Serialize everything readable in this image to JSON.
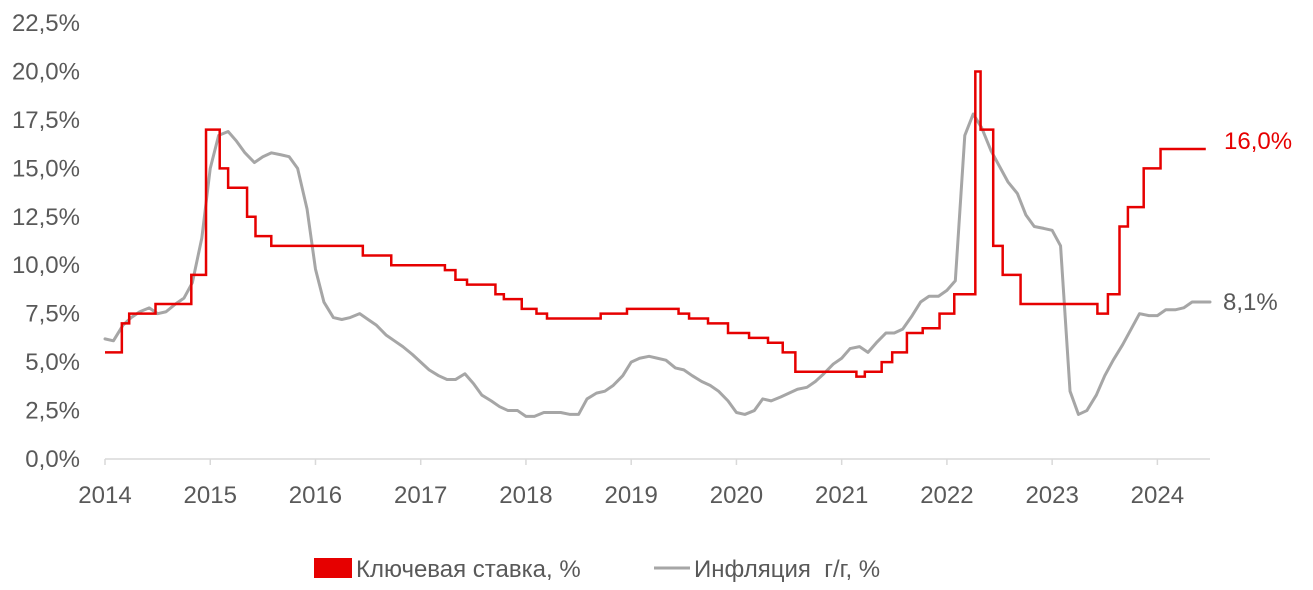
{
  "chart_data": {
    "type": "line",
    "title": "",
    "xlabel": "",
    "ylabel": "",
    "xlim": [
      2014.0,
      2024.5
    ],
    "ylim": [
      0,
      22.5
    ],
    "x_ticks": [
      "2014",
      "2015",
      "2016",
      "2017",
      "2018",
      "2019",
      "2020",
      "2021",
      "2022",
      "2023",
      "2024"
    ],
    "y_ticks": [
      0,
      2.5,
      5,
      7.5,
      10,
      12.5,
      15,
      17.5,
      20,
      22.5
    ],
    "y_tick_labels": [
      "0,0%",
      "2,5%",
      "5,0%",
      "7,5%",
      "10,0%",
      "12,5%",
      "15,0%",
      "17,5%",
      "20,0%",
      "22,5%"
    ],
    "grid": false,
    "legend_position": "bottom",
    "legend": [
      "Ключевая ставка, %",
      "Инфляция  г/г, %"
    ],
    "end_labels": [
      "16,0%",
      "8,1%"
    ],
    "colors": {
      "key_rate": "#e60000",
      "inflation": "#a6a6a6",
      "axis": "#d9d9d9",
      "text": "#595959"
    },
    "series": [
      {
        "name": "Ключевая ставка, %",
        "kind": "step",
        "x": [
          2014.0,
          2014.16,
          2014.23,
          2014.48,
          2014.82,
          2014.96,
          2015.09,
          2015.17,
          2015.35,
          2015.43,
          2015.58,
          2016.45,
          2016.72,
          2017.23,
          2017.33,
          2017.44,
          2017.71,
          2017.79,
          2017.96,
          2018.1,
          2018.2,
          2018.71,
          2018.96,
          2019.45,
          2019.55,
          2019.73,
          2019.92,
          2020.12,
          2020.3,
          2020.44,
          2020.56,
          2021.14,
          2021.22,
          2021.38,
          2021.48,
          2021.62,
          2021.77,
          2021.93,
          2022.07,
          2022.27,
          2022.32,
          2022.44,
          2022.53,
          2022.7,
          2023.43,
          2023.53,
          2023.64,
          2023.72,
          2023.87,
          2024.03,
          2024.46
        ],
        "values": [
          5.5,
          7.0,
          7.5,
          8.0,
          9.5,
          17.0,
          15.0,
          14.0,
          12.5,
          11.5,
          11.0,
          10.5,
          10.0,
          9.75,
          9.25,
          9.0,
          8.5,
          8.25,
          7.75,
          7.5,
          7.25,
          7.5,
          7.75,
          7.5,
          7.25,
          7.0,
          6.5,
          6.25,
          6.0,
          5.5,
          4.5,
          4.25,
          4.5,
          5.0,
          5.5,
          6.5,
          6.75,
          7.5,
          8.5,
          20.0,
          17.0,
          11.0,
          9.5,
          8.0,
          7.5,
          8.5,
          12.0,
          13.0,
          15.0,
          16.0,
          16.0
        ]
      },
      {
        "name": "Инфляция  г/г, %",
        "kind": "line",
        "x": [
          2014.0,
          2014.08,
          2014.17,
          2014.25,
          2014.33,
          2014.42,
          2014.5,
          2014.58,
          2014.67,
          2014.75,
          2014.83,
          2014.92,
          2015.0,
          2015.08,
          2015.17,
          2015.25,
          2015.33,
          2015.42,
          2015.5,
          2015.58,
          2015.67,
          2015.75,
          2015.83,
          2015.92,
          2016.0,
          2016.08,
          2016.17,
          2016.25,
          2016.33,
          2016.42,
          2016.5,
          2016.58,
          2016.67,
          2016.75,
          2016.83,
          2016.92,
          2017.0,
          2017.08,
          2017.17,
          2017.25,
          2017.33,
          2017.42,
          2017.5,
          2017.58,
          2017.67,
          2017.75,
          2017.83,
          2017.92,
          2018.0,
          2018.08,
          2018.17,
          2018.25,
          2018.33,
          2018.42,
          2018.5,
          2018.58,
          2018.67,
          2018.75,
          2018.83,
          2018.92,
          2019.0,
          2019.08,
          2019.17,
          2019.25,
          2019.33,
          2019.42,
          2019.5,
          2019.58,
          2019.67,
          2019.75,
          2019.83,
          2019.92,
          2020.0,
          2020.08,
          2020.17,
          2020.25,
          2020.33,
          2020.42,
          2020.5,
          2020.58,
          2020.67,
          2020.75,
          2020.83,
          2020.92,
          2021.0,
          2021.08,
          2021.17,
          2021.25,
          2021.33,
          2021.42,
          2021.5,
          2021.58,
          2021.67,
          2021.75,
          2021.83,
          2021.92,
          2022.0,
          2022.08,
          2022.17,
          2022.25,
          2022.33,
          2022.42,
          2022.5,
          2022.58,
          2022.67,
          2022.75,
          2022.83,
          2022.92,
          2023.0,
          2023.08,
          2023.17,
          2023.25,
          2023.33,
          2023.42,
          2023.5,
          2023.58,
          2023.67,
          2023.75,
          2023.83,
          2023.92,
          2024.0,
          2024.08,
          2024.17,
          2024.25,
          2024.33,
          2024.42,
          2024.5
        ],
        "values": [
          6.2,
          6.1,
          6.9,
          7.3,
          7.6,
          7.8,
          7.5,
          7.6,
          8.0,
          8.3,
          9.1,
          11.4,
          15.0,
          16.7,
          16.9,
          16.4,
          15.8,
          15.3,
          15.6,
          15.8,
          15.7,
          15.6,
          15.0,
          12.9,
          9.8,
          8.1,
          7.3,
          7.2,
          7.3,
          7.5,
          7.2,
          6.9,
          6.4,
          6.1,
          5.8,
          5.4,
          5.0,
          4.6,
          4.3,
          4.1,
          4.1,
          4.4,
          3.9,
          3.3,
          3.0,
          2.7,
          2.5,
          2.5,
          2.2,
          2.2,
          2.4,
          2.4,
          2.4,
          2.3,
          2.3,
          3.1,
          3.4,
          3.5,
          3.8,
          4.3,
          5.0,
          5.2,
          5.3,
          5.2,
          5.1,
          4.7,
          4.6,
          4.3,
          4.0,
          3.8,
          3.5,
          3.0,
          2.4,
          2.3,
          2.5,
          3.1,
          3.0,
          3.2,
          3.4,
          3.6,
          3.7,
          4.0,
          4.4,
          4.9,
          5.2,
          5.7,
          5.8,
          5.5,
          6.0,
          6.5,
          6.5,
          6.7,
          7.4,
          8.1,
          8.4,
          8.4,
          8.7,
          9.2,
          16.7,
          17.8,
          17.1,
          15.9,
          15.1,
          14.3,
          13.7,
          12.6,
          12.0,
          11.9,
          11.8,
          11.0,
          3.5,
          2.3,
          2.5,
          3.3,
          4.3,
          5.1,
          5.9,
          6.7,
          7.5,
          7.4,
          7.4,
          7.7,
          7.7,
          7.8,
          8.1,
          8.1,
          8.1
        ]
      }
    ]
  }
}
